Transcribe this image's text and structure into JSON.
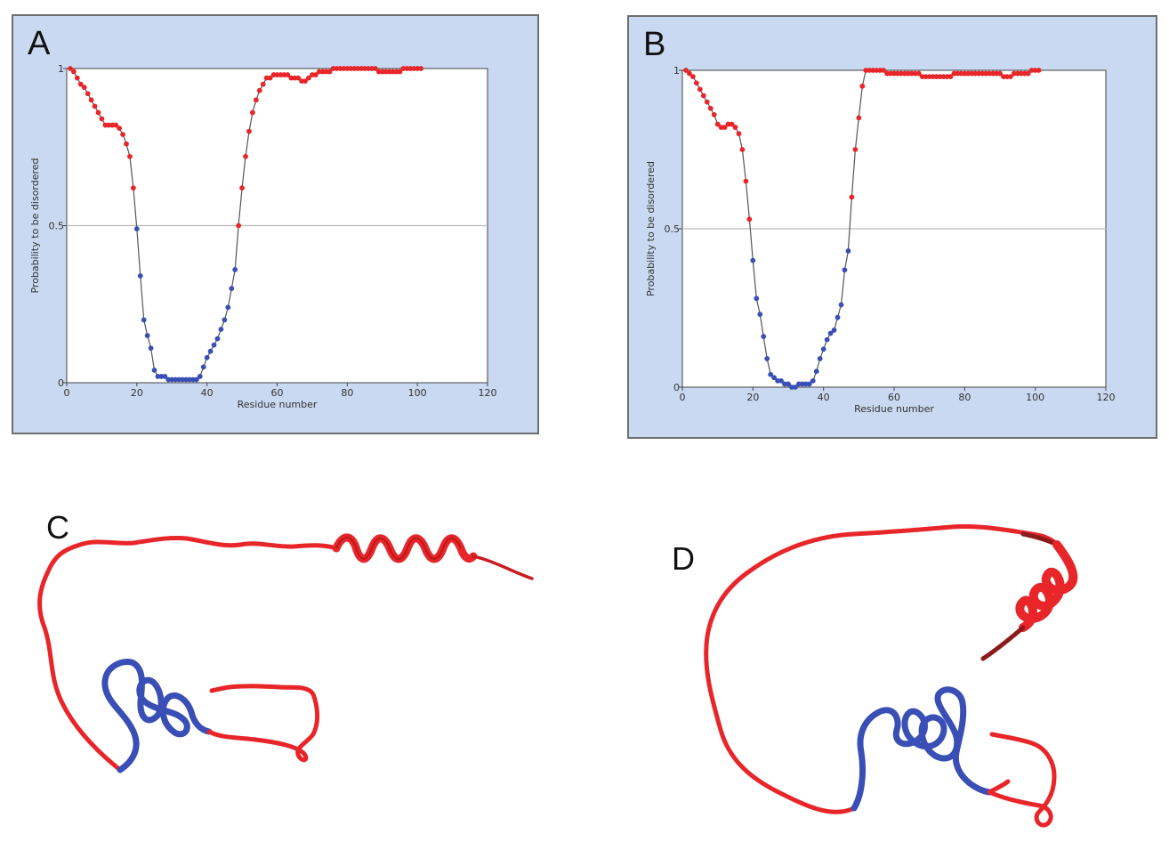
{
  "panels": {
    "a_letter": "A",
    "b_letter": "B",
    "c_letter": "C",
    "d_letter": "D"
  },
  "colors": {
    "panel_bg": "#c9d9f1",
    "disordered": "#e8262a",
    "ordered": "#3a4fb5",
    "line": "#555555",
    "threshold": "#bbbbbb"
  },
  "chart_data": [
    {
      "type": "scatter",
      "panel": "A",
      "xlabel": "Residue number",
      "ylabel": "Probability to be disordered",
      "xlim": [
        0,
        120
      ],
      "ylim": [
        0,
        1
      ],
      "xticks": [
        "0",
        "20",
        "40",
        "60",
        "80",
        "100",
        "120"
      ],
      "yticks": [
        "0",
        "0.5",
        "1"
      ],
      "threshold": 0.5,
      "legend": "none",
      "x": [
        1,
        2,
        3,
        4,
        5,
        6,
        7,
        8,
        9,
        10,
        11,
        12,
        13,
        14,
        15,
        16,
        17,
        18,
        19,
        20,
        21,
        22,
        23,
        24,
        25,
        26,
        27,
        28,
        29,
        30,
        31,
        32,
        33,
        34,
        35,
        36,
        37,
        38,
        39,
        40,
        41,
        42,
        43,
        44,
        45,
        46,
        47,
        48,
        49,
        50,
        51,
        52,
        53,
        54,
        55,
        56,
        57,
        58,
        59,
        60,
        61,
        62,
        63,
        64,
        65,
        66,
        67,
        68,
        69,
        70,
        71,
        72,
        73,
        74,
        75,
        76,
        77,
        78,
        79,
        80,
        81,
        82,
        83,
        84,
        85,
        86,
        87,
        88,
        89,
        90,
        91,
        92,
        93,
        94,
        95,
        96,
        97,
        98,
        99,
        100,
        101
      ],
      "y": [
        1.0,
        0.99,
        0.97,
        0.95,
        0.94,
        0.92,
        0.9,
        0.88,
        0.86,
        0.84,
        0.82,
        0.82,
        0.82,
        0.82,
        0.81,
        0.79,
        0.76,
        0.72,
        0.62,
        0.49,
        0.34,
        0.2,
        0.15,
        0.11,
        0.04,
        0.02,
        0.02,
        0.02,
        0.01,
        0.01,
        0.01,
        0.01,
        0.01,
        0.01,
        0.01,
        0.01,
        0.01,
        0.02,
        0.05,
        0.08,
        0.1,
        0.12,
        0.14,
        0.17,
        0.2,
        0.24,
        0.3,
        0.36,
        0.5,
        0.62,
        0.72,
        0.8,
        0.86,
        0.9,
        0.93,
        0.95,
        0.97,
        0.97,
        0.98,
        0.98,
        0.98,
        0.98,
        0.98,
        0.97,
        0.97,
        0.97,
        0.96,
        0.96,
        0.97,
        0.98,
        0.98,
        0.99,
        0.99,
        0.99,
        0.99,
        1.0,
        1.0,
        1.0,
        1.0,
        1.0,
        1.0,
        1.0,
        1.0,
        1.0,
        1.0,
        1.0,
        1.0,
        1.0,
        0.99,
        0.99,
        0.99,
        0.99,
        0.99,
        0.99,
        0.99,
        1.0,
        1.0,
        1.0,
        1.0,
        1.0,
        1.0
      ]
    },
    {
      "type": "scatter",
      "panel": "B",
      "xlabel": "Residue number",
      "ylabel": "Probability to be disordered",
      "xlim": [
        0,
        120
      ],
      "ylim": [
        0,
        1
      ],
      "xticks": [
        "0",
        "20",
        "40",
        "60",
        "80",
        "100",
        "120"
      ],
      "yticks": [
        "0",
        "0.5",
        "1"
      ],
      "threshold": 0.5,
      "legend": "none",
      "x": [
        1,
        2,
        3,
        4,
        5,
        6,
        7,
        8,
        9,
        10,
        11,
        12,
        13,
        14,
        15,
        16,
        17,
        18,
        19,
        20,
        21,
        22,
        23,
        24,
        25,
        26,
        27,
        28,
        29,
        30,
        31,
        32,
        33,
        34,
        35,
        36,
        37,
        38,
        39,
        40,
        41,
        42,
        43,
        44,
        45,
        46,
        47,
        48,
        49,
        50,
        51,
        52,
        53,
        54,
        55,
        56,
        57,
        58,
        59,
        60,
        61,
        62,
        63,
        64,
        65,
        66,
        67,
        68,
        69,
        70,
        71,
        72,
        73,
        74,
        75,
        76,
        77,
        78,
        79,
        80,
        81,
        82,
        83,
        84,
        85,
        86,
        87,
        88,
        89,
        90,
        91,
        92,
        93,
        94,
        95,
        96,
        97,
        98,
        99,
        100,
        101
      ],
      "y": [
        1.0,
        0.99,
        0.98,
        0.96,
        0.94,
        0.92,
        0.9,
        0.88,
        0.86,
        0.83,
        0.82,
        0.82,
        0.83,
        0.83,
        0.82,
        0.8,
        0.75,
        0.65,
        0.53,
        0.4,
        0.28,
        0.23,
        0.16,
        0.09,
        0.04,
        0.03,
        0.02,
        0.02,
        0.01,
        0.01,
        0.0,
        0.0,
        0.01,
        0.01,
        0.01,
        0.01,
        0.02,
        0.05,
        0.09,
        0.12,
        0.15,
        0.17,
        0.18,
        0.22,
        0.26,
        0.37,
        0.43,
        0.6,
        0.75,
        0.85,
        0.95,
        1.0,
        1.0,
        1.0,
        1.0,
        1.0,
        1.0,
        0.99,
        0.99,
        0.99,
        0.99,
        0.99,
        0.99,
        0.99,
        0.99,
        0.99,
        0.99,
        0.98,
        0.98,
        0.98,
        0.98,
        0.98,
        0.98,
        0.98,
        0.98,
        0.98,
        0.99,
        0.99,
        0.99,
        0.99,
        0.99,
        0.99,
        0.99,
        0.99,
        0.99,
        0.99,
        0.99,
        0.99,
        0.99,
        0.99,
        0.98,
        0.98,
        0.98,
        0.99,
        0.99,
        0.99,
        0.99,
        0.99,
        1.0,
        1.0,
        1.0
      ]
    }
  ]
}
